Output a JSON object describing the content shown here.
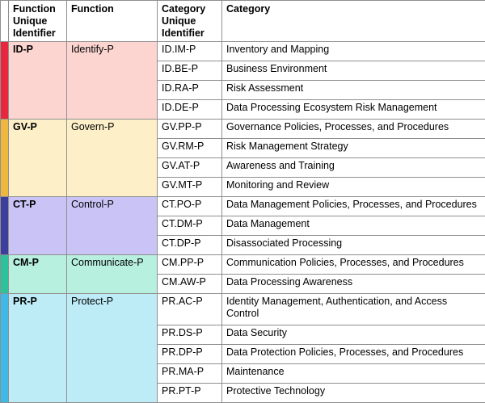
{
  "headers": {
    "function_id": "Function Unique Identifier",
    "function": "Function",
    "category_id": "Category Unique Identifier",
    "category": "Category"
  },
  "colors": {
    "identify": {
      "strip": "#e8273e",
      "fill": "#fcd5d1"
    },
    "govern": {
      "strip": "#f0b73f",
      "fill": "#fdf0c8"
    },
    "control": {
      "strip": "#3d3d9c",
      "fill": "#c9c3f6"
    },
    "communicate": {
      "strip": "#2cc29c",
      "fill": "#b8f0df"
    },
    "protect": {
      "strip": "#3fb9e6",
      "fill": "#bdecf7"
    }
  },
  "functions": [
    {
      "id": "ID-P",
      "name": "Identify-P",
      "categories": [
        {
          "id": "ID.IM-P",
          "name": "Inventory and Mapping"
        },
        {
          "id": "ID.BE-P",
          "name": "Business Environment"
        },
        {
          "id": "ID.RA-P",
          "name": "Risk Assessment"
        },
        {
          "id": "ID.DE-P",
          "name": "Data Processing Ecosystem Risk Management"
        }
      ]
    },
    {
      "id": "GV-P",
      "name": "Govern-P",
      "categories": [
        {
          "id": "GV.PP-P",
          "name": "Governance Policies, Processes, and Procedures"
        },
        {
          "id": "GV.RM-P",
          "name": "Risk Management Strategy"
        },
        {
          "id": "GV.AT-P",
          "name": "Awareness and Training"
        },
        {
          "id": "GV.MT-P",
          "name": "Monitoring and Review"
        }
      ]
    },
    {
      "id": "CT-P",
      "name": "Control-P",
      "categories": [
        {
          "id": "CT.PO-P",
          "name": "Data Management Policies, Processes, and Procedures"
        },
        {
          "id": "CT.DM-P",
          "name": "Data Management"
        },
        {
          "id": "CT.DP-P",
          "name": "Disassociated Processing"
        }
      ]
    },
    {
      "id": "CM-P",
      "name": "Communicate-P",
      "categories": [
        {
          "id": "CM.PP-P",
          "name": "Communication Policies, Processes, and Procedures"
        },
        {
          "id": "CM.AW-P",
          "name": "Data Processing Awareness"
        }
      ]
    },
    {
      "id": "PR-P",
      "name": "Protect-P",
      "categories": [
        {
          "id": "PR.AC-P",
          "name": "Identity Management, Authentication, and Access Control"
        },
        {
          "id": "PR.DS-P",
          "name": "Data Security"
        },
        {
          "id": "PR.DP-P",
          "name": "Data Protection Policies, Processes, and Procedures"
        },
        {
          "id": "PR.MA-P",
          "name": "Maintenance"
        },
        {
          "id": "PR.PT-P",
          "name": "Protective Technology"
        }
      ]
    }
  ]
}
